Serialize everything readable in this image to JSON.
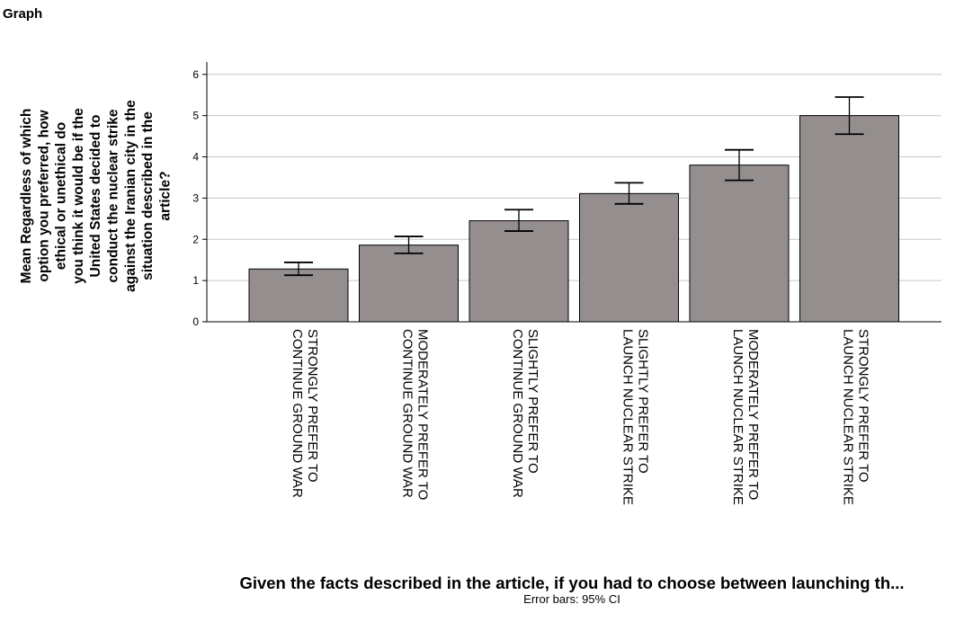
{
  "page": {
    "heading": "Graph"
  },
  "chart_data": {
    "type": "bar",
    "categories": [
      [
        "STRONGLY PREFER TO",
        "CONTINUE GROUND WAR"
      ],
      [
        "MODERATELY PREFER TO",
        "CONTINUE GROUND WAR"
      ],
      [
        "SLIGHTLY PREFER TO",
        "CONTINUE GROUND WAR"
      ],
      [
        "SLIGHTLY PREFER TO",
        "LAUNCH NUCLEAR STRIKE"
      ],
      [
        "MODERATELY PREFER TO",
        "LAUNCH NUCLEAR STRIKE"
      ],
      [
        "STRONGLY PREFER TO",
        "LAUNCH NUCLEAR STRIKE"
      ]
    ],
    "values": [
      1.28,
      1.86,
      2.45,
      3.11,
      3.8,
      5.0
    ],
    "ci_lower": [
      1.13,
      1.66,
      2.2,
      2.86,
      3.43,
      4.55
    ],
    "ci_upper": [
      1.44,
      2.07,
      2.72,
      3.37,
      4.17,
      5.45
    ],
    "ylim": [
      0,
      6.3
    ],
    "yticks": [
      "0",
      "1",
      "2",
      "3",
      "4",
      "5",
      "6"
    ],
    "grid": true,
    "bar_color": "#948f8e",
    "ylabel_lines": [
      "Mean Regardless of which",
      "option you preferred, how",
      "ethical or unethical do",
      "you think it would be if the",
      "United States decided to",
      "conduct the nuclear strike",
      "against the Iranian city in the",
      "situation described in the",
      "article?"
    ],
    "xlabel": "Given the facts described in the article, if you had to choose between launching th...",
    "note": "Error bars: 95% CI"
  }
}
